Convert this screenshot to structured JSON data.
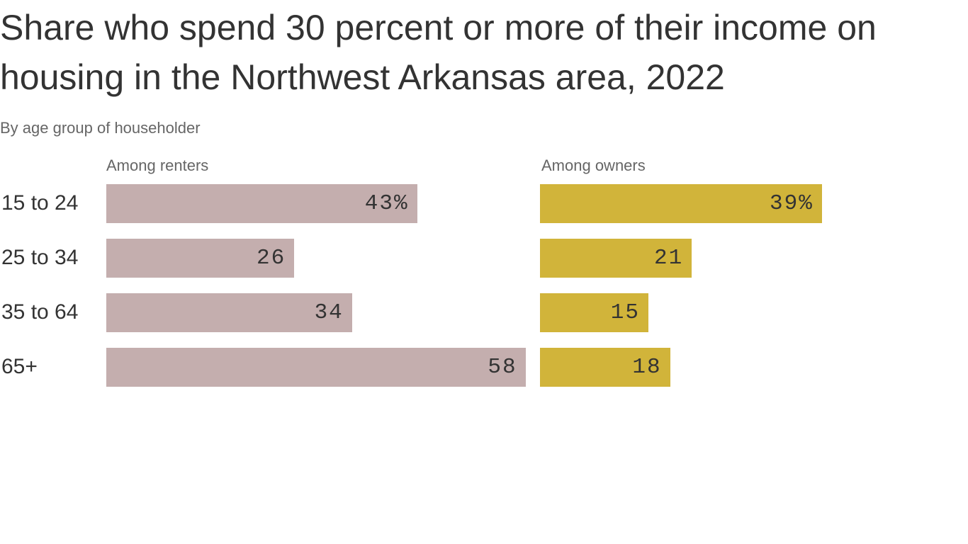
{
  "chart_data": {
    "type": "bar",
    "title": "Share who spend 30 percent or more of their income on housing in the Northwest Arkansas area, 2022",
    "subtitle": "By age group of householder",
    "categories": [
      "15 to 24",
      "25 to 34",
      "35 to 64",
      "65+"
    ],
    "series": [
      {
        "name": "Among renters",
        "values": [
          43,
          26,
          34,
          58
        ],
        "labels": [
          "43%",
          "26",
          "34",
          "58"
        ],
        "color": "#c4aeae"
      },
      {
        "name": "Among owners",
        "values": [
          39,
          21,
          15,
          18
        ],
        "labels": [
          "39%",
          "21",
          "15",
          "18"
        ],
        "color": "#d1b43a"
      }
    ],
    "xlim": [
      0,
      58
    ],
    "grid": false
  }
}
